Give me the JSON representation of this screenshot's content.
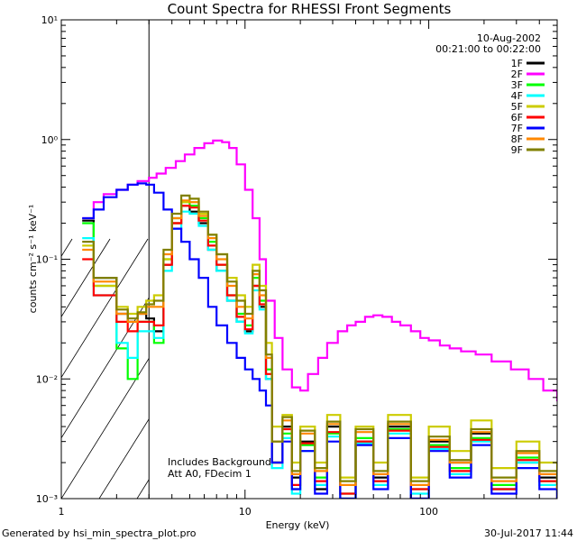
{
  "chart_data": {
    "type": "line",
    "title": "Count Spectra for RHESSI Front Segments",
    "xlabel": "Energy (keV)",
    "ylabel": "counts cm⁻² s⁻¹ keV⁻¹",
    "xscale": "log",
    "yscale": "log",
    "xlim": [
      1,
      500
    ],
    "ylim": [
      0.001,
      10
    ],
    "x_ticks": [
      {
        "value": 1,
        "label": "1"
      },
      {
        "value": 10,
        "label": "10"
      },
      {
        "value": 100,
        "label": "100"
      }
    ],
    "y_ticks": [
      {
        "value": 10,
        "label": "10¹"
      },
      {
        "value": 1,
        "label": "10⁰"
      },
      {
        "value": 0.1,
        "label": "10⁻¹"
      },
      {
        "value": 0.01,
        "label": "10⁻²"
      },
      {
        "value": 0.001,
        "label": "10⁻³"
      }
    ],
    "hatched_region": {
      "x_from": 1,
      "x_to": 3
    },
    "date": "10-Aug-2002",
    "time_range": "00:21:00 to 00:22:00",
    "annotations": [
      "Includes Background",
      "Att A0, FDecim 1"
    ],
    "series": [
      {
        "name": "1F",
        "color": "#000000",
        "x": [
          1.3,
          1.5,
          1.5,
          1.7,
          2.0,
          2.3,
          2.6,
          2.9,
          3.2,
          3.6,
          4.0,
          4.5,
          5.0,
          5.6,
          6.3,
          7.0,
          8.0,
          9.0,
          10.0,
          11,
          12,
          13,
          14,
          16,
          18,
          20,
          24,
          28,
          33,
          40,
          50,
          60,
          80,
          100,
          130,
          170,
          220,
          300,
          400,
          500
        ],
        "y": [
          0.21,
          0.21,
          0.07,
          0.07,
          0.035,
          0.03,
          0.035,
          0.032,
          0.025,
          0.09,
          0.2,
          0.28,
          0.25,
          0.2,
          0.12,
          0.08,
          0.045,
          0.03,
          0.025,
          0.06,
          0.04,
          0.01,
          0.002,
          0.004,
          0.0015,
          0.003,
          0.0012,
          0.004,
          0.001,
          0.003,
          0.0015,
          0.004,
          0.001,
          0.003,
          0.002,
          0.0035,
          0.0012,
          0.002,
          0.0015,
          0.001
        ]
      },
      {
        "name": "2F",
        "color": "#ff00ff",
        "x": [
          1.3,
          1.5,
          1.7,
          2.0,
          2.3,
          2.6,
          3.0,
          3.3,
          3.7,
          4.2,
          4.7,
          5.3,
          6.0,
          6.7,
          7.5,
          8.2,
          9.0,
          10.0,
          11.0,
          12.0,
          13.0,
          14.5,
          16,
          18,
          20,
          22,
          25,
          28,
          32,
          36,
          40,
          45,
          50,
          56,
          63,
          70,
          80,
          90,
          100,
          115,
          130,
          150,
          180,
          220,
          280,
          350,
          420,
          500
        ],
        "y": [
          0.22,
          0.3,
          0.35,
          0.38,
          0.42,
          0.45,
          0.48,
          0.52,
          0.58,
          0.66,
          0.75,
          0.85,
          0.93,
          0.98,
          0.95,
          0.85,
          0.62,
          0.38,
          0.22,
          0.1,
          0.045,
          0.022,
          0.012,
          0.0085,
          0.008,
          0.011,
          0.015,
          0.02,
          0.025,
          0.028,
          0.03,
          0.033,
          0.034,
          0.033,
          0.03,
          0.028,
          0.025,
          0.022,
          0.021,
          0.019,
          0.018,
          0.017,
          0.016,
          0.014,
          0.012,
          0.01,
          0.008,
          0.0065
        ]
      },
      {
        "name": "3F",
        "color": "#00ff00",
        "x": [
          1.3,
          1.5,
          1.5,
          1.7,
          2.0,
          2.3,
          2.6,
          2.9,
          3.2,
          3.6,
          4.0,
          4.5,
          5.0,
          5.6,
          6.3,
          7.0,
          8.0,
          9.0,
          10.0,
          11,
          12,
          13,
          14,
          16,
          18,
          20,
          24,
          28,
          33,
          40,
          50,
          60,
          80,
          100,
          130,
          170,
          220,
          300,
          400,
          500
        ],
        "y": [
          0.2,
          0.2,
          0.06,
          0.06,
          0.018,
          0.01,
          0.03,
          0.03,
          0.02,
          0.1,
          0.22,
          0.3,
          0.28,
          0.22,
          0.14,
          0.09,
          0.05,
          0.035,
          0.028,
          0.07,
          0.045,
          0.012,
          0.002,
          0.0035,
          0.0012,
          0.0028,
          0.0015,
          0.0035,
          0.0011,
          0.0032,
          0.0014,
          0.0038,
          0.0012,
          0.0028,
          0.0018,
          0.0032,
          0.0013,
          0.0022,
          0.0014,
          0.0011
        ]
      },
      {
        "name": "4F",
        "color": "#00ffff",
        "x": [
          1.3,
          1.5,
          1.5,
          1.7,
          2.0,
          2.3,
          2.6,
          2.9,
          3.2,
          3.6,
          4.0,
          4.5,
          5.0,
          5.6,
          6.3,
          7.0,
          8.0,
          9.0,
          10.0,
          11,
          12,
          13,
          14,
          16,
          18,
          20,
          24,
          28,
          33,
          40,
          50,
          60,
          80,
          100,
          130,
          170,
          220,
          300,
          400,
          500
        ],
        "y": [
          0.15,
          0.15,
          0.05,
          0.05,
          0.02,
          0.015,
          0.025,
          0.025,
          0.022,
          0.08,
          0.18,
          0.25,
          0.24,
          0.19,
          0.12,
          0.08,
          0.045,
          0.03,
          0.024,
          0.055,
          0.038,
          0.01,
          0.0018,
          0.0032,
          0.0011,
          0.0025,
          0.0013,
          0.0033,
          0.001,
          0.0029,
          0.0013,
          0.0035,
          0.0011,
          0.0026,
          0.0016,
          0.003,
          0.0012,
          0.002,
          0.0013,
          0.001
        ]
      },
      {
        "name": "5F",
        "color": "#cccc00",
        "x": [
          1.3,
          1.5,
          1.5,
          1.7,
          2.0,
          2.3,
          2.6,
          2.9,
          3.2,
          3.6,
          4.0,
          4.5,
          5.0,
          5.6,
          6.3,
          7.0,
          8.0,
          9.0,
          10.0,
          11,
          12,
          13,
          14,
          16,
          18,
          20,
          24,
          28,
          33,
          40,
          50,
          60,
          80,
          100,
          130,
          170,
          220,
          300,
          400,
          500
        ],
        "y": [
          0.13,
          0.13,
          0.06,
          0.06,
          0.04,
          0.035,
          0.04,
          0.045,
          0.05,
          0.1,
          0.2,
          0.3,
          0.3,
          0.24,
          0.16,
          0.11,
          0.07,
          0.05,
          0.04,
          0.09,
          0.06,
          0.02,
          0.004,
          0.005,
          0.002,
          0.004,
          0.002,
          0.005,
          0.0015,
          0.004,
          0.002,
          0.005,
          0.0015,
          0.004,
          0.0025,
          0.0045,
          0.0018,
          0.003,
          0.002,
          0.0015
        ]
      },
      {
        "name": "6F",
        "color": "#ff0000",
        "x": [
          1.3,
          1.5,
          1.5,
          1.7,
          2.0,
          2.3,
          2.6,
          2.9,
          3.2,
          3.6,
          4.0,
          4.5,
          5.0,
          5.6,
          6.3,
          7.0,
          8.0,
          9.0,
          10.0,
          11,
          12,
          13,
          14,
          16,
          18,
          20,
          24,
          28,
          33,
          40,
          50,
          60,
          80,
          100,
          130,
          170,
          220,
          300,
          400,
          500
        ],
        "y": [
          0.1,
          0.1,
          0.05,
          0.05,
          0.03,
          0.025,
          0.03,
          0.03,
          0.028,
          0.09,
          0.2,
          0.28,
          0.27,
          0.21,
          0.13,
          0.09,
          0.05,
          0.033,
          0.026,
          0.06,
          0.042,
          0.011,
          0.002,
          0.0038,
          0.0013,
          0.0029,
          0.0014,
          0.0036,
          0.0011,
          0.003,
          0.0014,
          0.0037,
          0.0012,
          0.0027,
          0.0017,
          0.0031,
          0.0012,
          0.0021,
          0.0014,
          0.001
        ]
      },
      {
        "name": "7F",
        "color": "#0000ff",
        "x": [
          1.3,
          1.5,
          1.7,
          2.0,
          2.3,
          2.6,
          2.9,
          3.2,
          3.6,
          4.0,
          4.5,
          5.0,
          5.6,
          6.3,
          7.0,
          8.0,
          9.0,
          10.0,
          11,
          12,
          13,
          14,
          16,
          18,
          20,
          24,
          28,
          33,
          40,
          50,
          60,
          80,
          100,
          130,
          170,
          220,
          300,
          400,
          500
        ],
        "y": [
          0.22,
          0.26,
          0.33,
          0.38,
          0.42,
          0.43,
          0.42,
          0.36,
          0.26,
          0.18,
          0.14,
          0.1,
          0.07,
          0.04,
          0.028,
          0.02,
          0.015,
          0.012,
          0.01,
          0.008,
          0.006,
          0.002,
          0.003,
          0.0012,
          0.0025,
          0.0011,
          0.003,
          0.001,
          0.0028,
          0.0012,
          0.0032,
          0.001,
          0.0025,
          0.0015,
          0.0028,
          0.0011,
          0.0018,
          0.0012,
          0.001
        ]
      },
      {
        "name": "8F",
        "color": "#ff8800",
        "x": [
          1.3,
          1.5,
          1.5,
          1.7,
          2.0,
          2.3,
          2.6,
          2.9,
          3.2,
          3.6,
          4.0,
          4.5,
          5.0,
          5.6,
          6.3,
          7.0,
          8.0,
          9.0,
          10.0,
          11,
          12,
          13,
          14,
          16,
          18,
          20,
          24,
          28,
          33,
          40,
          50,
          60,
          80,
          100,
          130,
          170,
          220,
          300,
          400,
          500
        ],
        "y": [
          0.12,
          0.12,
          0.065,
          0.065,
          0.035,
          0.03,
          0.035,
          0.04,
          0.04,
          0.11,
          0.22,
          0.31,
          0.3,
          0.23,
          0.15,
          0.1,
          0.06,
          0.04,
          0.032,
          0.075,
          0.05,
          0.015,
          0.003,
          0.0045,
          0.0016,
          0.0035,
          0.0017,
          0.0042,
          0.0013,
          0.0036,
          0.0016,
          0.0042,
          0.0013,
          0.0031,
          0.002,
          0.0036,
          0.0014,
          0.0024,
          0.0016,
          0.0012
        ]
      },
      {
        "name": "9F",
        "color": "#808000",
        "x": [
          1.3,
          1.5,
          1.5,
          1.7,
          2.0,
          2.3,
          2.6,
          2.9,
          3.2,
          3.6,
          4.0,
          4.5,
          5.0,
          5.6,
          6.3,
          7.0,
          8.0,
          9.0,
          10.0,
          11,
          12,
          13,
          14,
          16,
          18,
          20,
          24,
          28,
          33,
          40,
          50,
          60,
          80,
          100,
          130,
          170,
          220,
          300,
          400,
          500
        ],
        "y": [
          0.14,
          0.14,
          0.07,
          0.07,
          0.038,
          0.032,
          0.036,
          0.042,
          0.045,
          0.12,
          0.24,
          0.34,
          0.32,
          0.25,
          0.16,
          0.11,
          0.065,
          0.045,
          0.035,
          0.08,
          0.055,
          0.016,
          0.003,
          0.0048,
          0.0017,
          0.0037,
          0.0018,
          0.0044,
          0.0014,
          0.0038,
          0.0017,
          0.0044,
          0.0014,
          0.0033,
          0.0021,
          0.0038,
          0.0015,
          0.0025,
          0.0017,
          0.0013
        ]
      }
    ]
  },
  "footer": {
    "generated_by": "Generated by hsi_min_spectra_plot.pro",
    "timestamp": "30-Jul-2017 11:44"
  }
}
